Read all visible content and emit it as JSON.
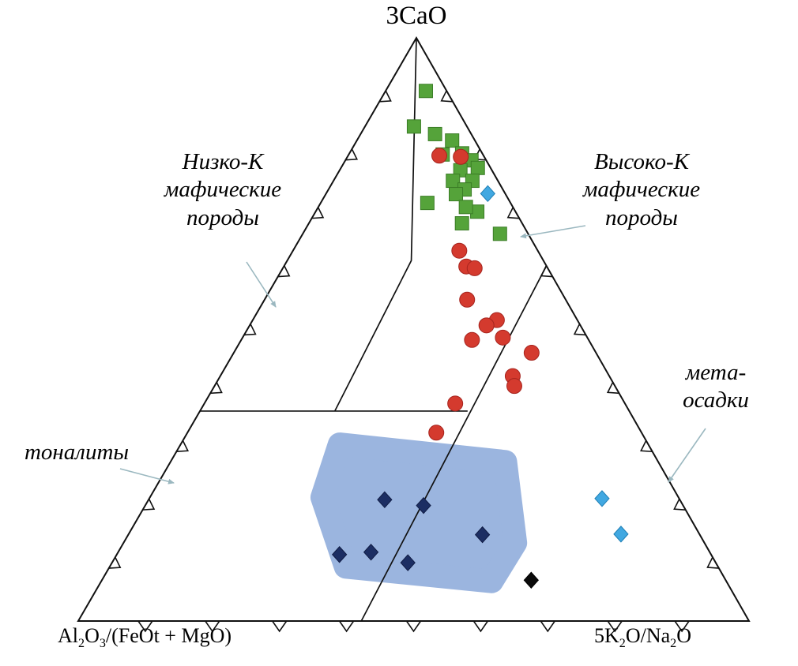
{
  "page": {
    "background": "#ffffff"
  },
  "chart_data": {
    "type": "scatter",
    "subtype": "ternary",
    "title": "",
    "point_format": "[3CaO %, Al2O3/(FeOt+MgO) %, 5K2O/Na2O %]",
    "tick_step_percent": 10,
    "grid": false,
    "legend": "none",
    "axes": {
      "top": "3CaO",
      "bottom_left_parts": [
        "Al",
        "2",
        "O",
        "3",
        "/(FeOt + MgO)"
      ],
      "bottom_right_parts": [
        "5K",
        "2",
        "O/Na",
        "2",
        "O"
      ]
    },
    "colors": {
      "outline": "#111111",
      "arrow": "#9bb8c0",
      "region": "#86a5d8"
    },
    "boundaries": [
      [
        [
          100,
          0,
          0
        ],
        [
          61.8,
          19.7,
          18.5
        ],
        [
          36.0,
          43.9,
          20.1
        ]
      ],
      [
        [
          36.0,
          64.0,
          0.0
        ],
        [
          36.0,
          24.1,
          39.9
        ]
      ],
      [
        [
          60.9,
          0.0,
          39.1
        ],
        [
          0.0,
          57.8,
          42.2
        ]
      ]
    ],
    "highlight_region": {
      "name": "tonalite-blob",
      "color": "#86a5d8",
      "opacity": 0.82,
      "points": [
        [
          30.3,
          46.0,
          23.7
        ],
        [
          27.3,
          22.8,
          49.9
        ],
        [
          13.4,
          28.2,
          58.4
        ],
        [
          6.8,
          35.0,
          58.2
        ],
        [
          9.3,
          55.5,
          35.2
        ],
        [
          21.2,
          53.1,
          25.7
        ]
      ]
    },
    "series": [
      {
        "name": "green-squares",
        "marker": "square",
        "color": "#55a33a",
        "edge": "#3b7d26",
        "points": [
          [
            90.9,
            3.1,
            6.0
          ],
          [
            84.8,
            7.9,
            7.3
          ],
          [
            83.5,
            5.4,
            11.1
          ],
          [
            82.4,
            3.4,
            14.2
          ],
          [
            80.0,
            6.0,
            14.0
          ],
          [
            80.2,
            3.0,
            16.8
          ],
          [
            79.0,
            2.2,
            18.8
          ],
          [
            77.7,
            1.9,
            20.4
          ],
          [
            77.3,
            4.7,
            18.0
          ],
          [
            75.5,
            6.7,
            17.8
          ],
          [
            75.5,
            3.8,
            20.7
          ],
          [
            74.0,
            5.7,
            20.3
          ],
          [
            71.7,
            12.4,
            15.9
          ],
          [
            73.2,
            7.4,
            19.4
          ],
          [
            70.2,
            5.7,
            24.1
          ],
          [
            71.0,
            7.0,
            22.0
          ],
          [
            68.2,
            9.0,
            22.9
          ],
          [
            66.4,
            4.2,
            29.4
          ]
        ]
      },
      {
        "name": "red-circles",
        "marker": "circle",
        "color": "#d43a2e",
        "edge": "#a6241e",
        "points": [
          [
            79.8,
            6.6,
            13.6
          ],
          [
            79.6,
            3.5,
            16.9
          ],
          [
            63.5,
            11.7,
            24.8
          ],
          [
            60.8,
            12.0,
            27.2
          ],
          [
            60.5,
            10.9,
            28.6
          ],
          [
            55.1,
            14.7,
            30.2
          ],
          [
            51.6,
            12.0,
            36.4
          ],
          [
            50.7,
            14.0,
            35.3
          ],
          [
            48.2,
            17.4,
            34.4
          ],
          [
            48.6,
            12.6,
            38.8
          ],
          [
            46.0,
            9.6,
            44.4
          ],
          [
            42.0,
            14.4,
            43.6
          ],
          [
            40.3,
            15.0,
            44.7
          ],
          [
            37.3,
            25.3,
            37.4
          ],
          [
            32.3,
            30.6,
            37.1
          ]
        ]
      },
      {
        "name": "navy-diamonds",
        "marker": "diamond",
        "color": "#1c2e63",
        "edge": "#101c44",
        "points": [
          [
            20.8,
            44.0,
            35.2
          ],
          [
            19.8,
            38.7,
            41.5
          ],
          [
            14.8,
            32.4,
            52.8
          ],
          [
            11.4,
            55.4,
            33.2
          ],
          [
            11.8,
            50.5,
            37.7
          ],
          [
            10.0,
            45.9,
            44.1
          ]
        ]
      },
      {
        "name": "black-diamond",
        "marker": "diamond",
        "color": "#0a0a0a",
        "edge": "#000000",
        "points": [
          [
            7.0,
            29.0,
            64.0
          ]
        ]
      },
      {
        "name": "cyan-diamonds",
        "marker": "diamond",
        "color": "#41a8e1",
        "edge": "#1f7fb5",
        "points": [
          [
            73.3,
            2.6,
            24.1
          ],
          [
            21.0,
            11.5,
            67.5
          ],
          [
            14.9,
            11.7,
            73.4
          ]
        ]
      }
    ],
    "field_labels": {
      "low_k": {
        "text": "Низко-K\nмафические\nпороды",
        "arrow": {
          "from": [
            312,
            332
          ],
          "to": [
            349,
            389
          ]
        }
      },
      "high_k": {
        "text": "Высоко-K\nмафические\nпороды",
        "arrow": {
          "from": [
            741,
            286
          ],
          "to": [
            659,
            300
          ]
        }
      },
      "metasediments": {
        "text": "мета-\nосадки",
        "arrow": {
          "from": [
            893,
            543
          ],
          "to": [
            846,
            611
          ]
        }
      },
      "tonalites": {
        "text": "тоналиты",
        "arrow": {
          "from": [
            152,
            594
          ],
          "to": [
            220,
            612
          ]
        }
      }
    }
  }
}
